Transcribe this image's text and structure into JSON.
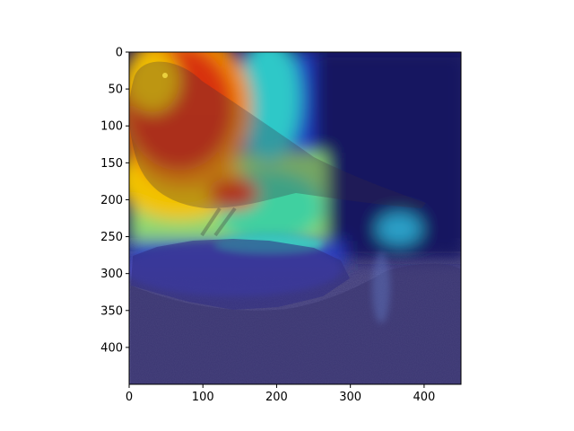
{
  "image": {
    "subject": "bird-on-ground-with-heatmap-overlay",
    "colormap": "jet",
    "colors": {
      "hot": "#d81a10",
      "warm": "#f5c400",
      "mid": "#1fd6c0",
      "cool": "#1a2bd6",
      "cold": "#14146a",
      "ground": "#4a4677"
    }
  },
  "axes": {
    "x_ticks": [
      "0",
      "100",
      "200",
      "300",
      "400"
    ],
    "y_ticks": [
      "0",
      "50",
      "100",
      "150",
      "200",
      "250",
      "300",
      "350",
      "400"
    ],
    "x_range": [
      0,
      450
    ],
    "y_range": [
      0,
      450
    ]
  }
}
